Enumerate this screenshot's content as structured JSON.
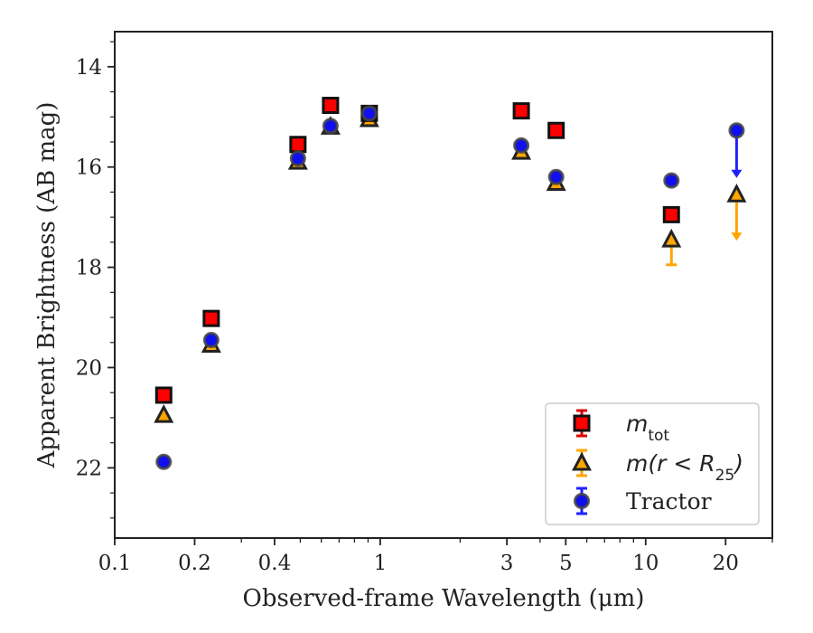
{
  "chart_data": {
    "type": "scatter",
    "title": "",
    "xlabel": "Observed-frame Wavelength (μm)",
    "ylabel": "Apparent Brightness (AB mag)",
    "xscale": "log",
    "xlim": [
      0.1,
      30
    ],
    "ylim": [
      23.4,
      13.3
    ],
    "y_inverted": true,
    "xticks": [
      {
        "value": 0.1,
        "label": "0.1"
      },
      {
        "value": 0.2,
        "label": "0.2"
      },
      {
        "value": 0.4,
        "label": "0.4"
      },
      {
        "value": 1,
        "label": "1"
      },
      {
        "value": 3,
        "label": "3"
      },
      {
        "value": 5,
        "label": "5"
      },
      {
        "value": 10,
        "label": "10"
      },
      {
        "value": 20,
        "label": "20"
      }
    ],
    "yticks": [
      {
        "value": 14,
        "label": "14"
      },
      {
        "value": 16,
        "label": "16"
      },
      {
        "value": 18,
        "label": "18"
      },
      {
        "value": 20,
        "label": "20"
      },
      {
        "value": 22,
        "label": "22"
      }
    ],
    "grid": false,
    "legend_position": "bottom-right",
    "series": [
      {
        "name": "m_tot",
        "name_parts": {
          "base": "m",
          "sub": "tot"
        },
        "marker": "square",
        "color": "#ff0000",
        "edge_color": "#111111",
        "error_color": "#dd0000",
        "points": [
          {
            "x": 0.153,
            "y": 20.55
          },
          {
            "x": 0.231,
            "y": 19.02
          },
          {
            "x": 0.49,
            "y": 15.55
          },
          {
            "x": 0.65,
            "y": 14.77
          },
          {
            "x": 0.91,
            "y": 14.93
          },
          {
            "x": 3.4,
            "y": 14.88
          },
          {
            "x": 4.6,
            "y": 15.27
          },
          {
            "x": 12.5,
            "y": 16.95
          }
        ]
      },
      {
        "name": "m(r < R_25)",
        "name_parts": {
          "base": "m(r < R",
          "sub": "25",
          "tail": ")"
        },
        "marker": "triangle",
        "color": "#ffa500",
        "edge_color": "#222222",
        "error_color": "#ffa500",
        "points": [
          {
            "x": 0.153,
            "y": 20.95
          },
          {
            "x": 0.231,
            "y": 19.55
          },
          {
            "x": 0.49,
            "y": 15.9
          },
          {
            "x": 0.65,
            "y": 15.2
          },
          {
            "x": 0.91,
            "y": 15.05
          },
          {
            "x": 3.4,
            "y": 15.7
          },
          {
            "x": 4.6,
            "y": 16.32
          },
          {
            "x": 12.5,
            "y": 17.45,
            "err_low": 17.95
          },
          {
            "x": 22.0,
            "y": 16.55,
            "upper_limit": true,
            "arrow_to": 17.45
          }
        ]
      },
      {
        "name": "Tractor",
        "marker": "circle",
        "color": "#1010ee",
        "edge_color": "#444444",
        "error_color": "#2020ff",
        "points": [
          {
            "x": 0.153,
            "y": 21.88
          },
          {
            "x": 0.231,
            "y": 19.45
          },
          {
            "x": 0.49,
            "y": 15.83
          },
          {
            "x": 0.65,
            "y": 15.18
          },
          {
            "x": 0.91,
            "y": 14.93
          },
          {
            "x": 3.4,
            "y": 15.57
          },
          {
            "x": 4.6,
            "y": 16.2
          },
          {
            "x": 12.5,
            "y": 16.27
          },
          {
            "x": 22.0,
            "y": 15.27,
            "upper_limit": true,
            "arrow_to": 16.2
          }
        ]
      }
    ]
  }
}
